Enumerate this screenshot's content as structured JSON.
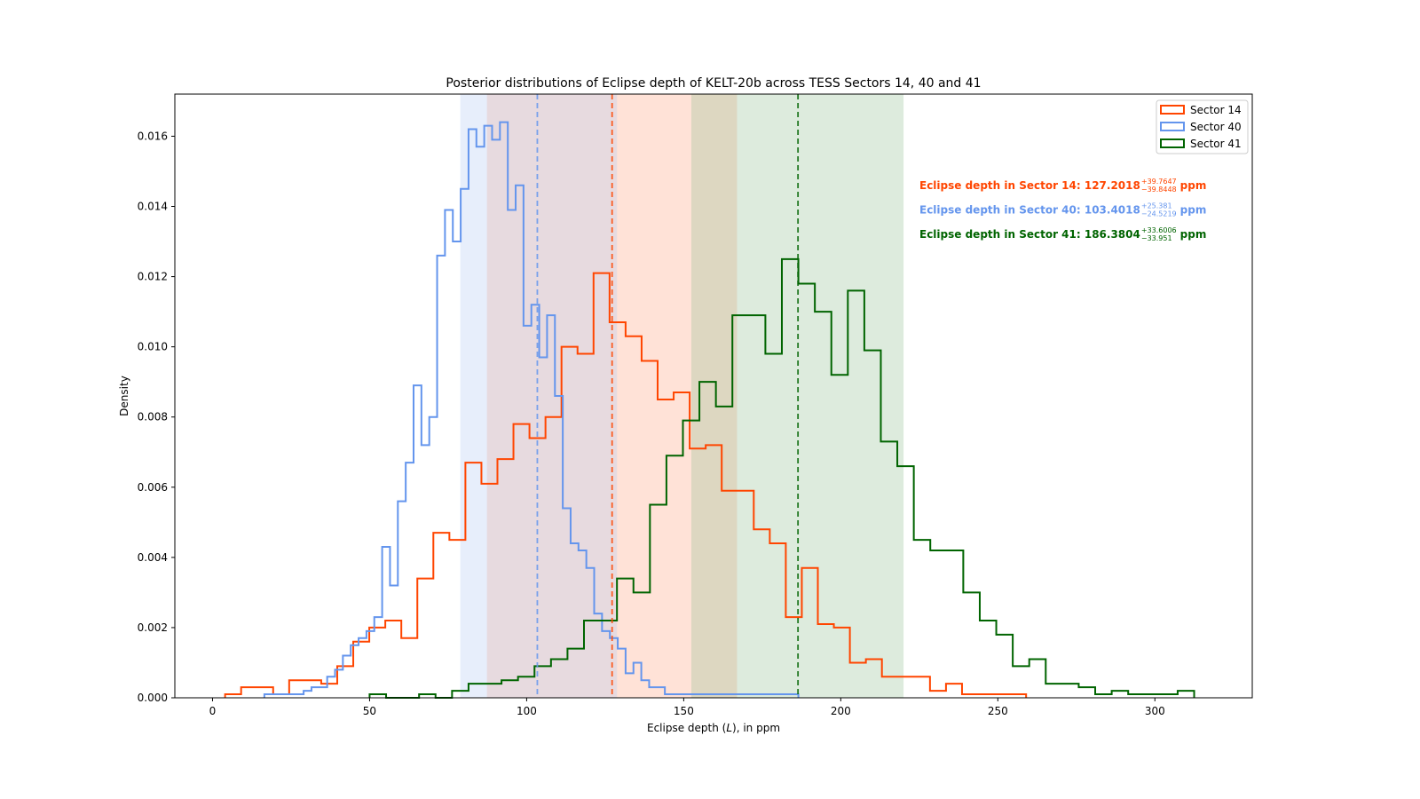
{
  "chart_data": {
    "type": "histogram",
    "title": "Posterior distributions of Eclipse depth of KELT-20b across TESS Sectors 14, 40 and 41",
    "xlabel_prefix": "Eclipse depth (",
    "xlabel_var": "L",
    "xlabel_suffix": "), in ppm",
    "ylabel": "Density",
    "xlim": [
      -12,
      331
    ],
    "ylim": [
      0,
      0.0172
    ],
    "xticks": [
      0,
      50,
      100,
      150,
      200,
      250,
      300
    ],
    "yticks": [
      0,
      0.002,
      0.004,
      0.006,
      0.008,
      0.01,
      0.012,
      0.014,
      0.016
    ],
    "ytick_labels": [
      "0.000",
      "0.002",
      "0.004",
      "0.006",
      "0.008",
      "0.010",
      "0.012",
      "0.014",
      "0.016"
    ],
    "legend_position": "top-right",
    "series": [
      {
        "name": "Sector 14",
        "color": "#ff4500",
        "median": 127.2018,
        "interval": [
          87.357,
          166.9665
        ],
        "band_color": "#ffa07a",
        "annotation": {
          "text": "Eclipse depth in Sector 14: 127.2018",
          "sup": "+39.7647",
          "sub": "−39.8448",
          "unit": "ppm"
        },
        "edges": [
          4.0,
          9.1,
          14.2,
          19.3,
          24.4,
          29.5,
          34.6,
          39.7,
          44.8,
          49.9,
          55.0,
          60.1,
          65.2,
          70.3,
          75.4,
          80.5,
          85.6,
          90.7,
          95.8,
          100.9,
          106.0,
          111.1,
          116.2,
          121.3,
          126.4,
          131.5,
          136.6,
          141.7,
          146.8,
          151.9,
          157.0,
          162.1,
          167.2,
          172.3,
          177.4,
          182.5,
          187.6,
          192.7,
          197.8,
          202.9,
          208.0,
          213.1,
          218.2,
          223.3,
          228.4,
          233.5,
          238.6,
          243.7,
          248.8,
          253.9,
          259.0
        ],
        "values": [
          0.0001,
          0.0003,
          0.0003,
          0.0001,
          0.0005,
          0.0005,
          0.0004,
          0.0009,
          0.0016,
          0.002,
          0.0022,
          0.0017,
          0.0034,
          0.0047,
          0.0045,
          0.0067,
          0.0061,
          0.0068,
          0.0078,
          0.0074,
          0.008,
          0.01,
          0.0098,
          0.0121,
          0.0107,
          0.0103,
          0.0096,
          0.0085,
          0.0087,
          0.0071,
          0.0072,
          0.0059,
          0.0059,
          0.0048,
          0.0044,
          0.0023,
          0.0037,
          0.0021,
          0.002,
          0.001,
          0.0011,
          0.0006,
          0.0006,
          0.0006,
          0.0002,
          0.0004,
          0.0001,
          0.0001,
          0.0001,
          0.0001
        ]
      },
      {
        "name": "Sector 40",
        "color": "#6495ed",
        "median": 103.4018,
        "interval": [
          78.8799,
          128.7829
        ],
        "band_color": "#aec6f2",
        "annotation": {
          "text": "Eclipse depth in Sector 40: 103.4018",
          "sup": "+25.381",
          "sub": "−24.5219",
          "unit": "ppm"
        },
        "edges": [
          16.5,
          19.0,
          21.5,
          24.0,
          26.5,
          29.0,
          31.5,
          34.0,
          36.5,
          39.0,
          41.5,
          44.0,
          46.5,
          49.0,
          51.5,
          54.0,
          56.5,
          59.0,
          61.5,
          64.0,
          66.5,
          69.0,
          71.5,
          74.0,
          76.5,
          79.0,
          81.5,
          84.0,
          86.5,
          89.0,
          91.5,
          94.0,
          96.5,
          99.0,
          101.5,
          104.0,
          106.5,
          109.0,
          111.5,
          114.0,
          116.5,
          119.0,
          121.5,
          124.0,
          126.5,
          129.0,
          131.5,
          134.0,
          136.5,
          139.0,
          141.5,
          144.0,
          146.5,
          149.0,
          151.5,
          154.0,
          156.5,
          159.0,
          161.5,
          164.0,
          166.5,
          169.0,
          171.5,
          174.0,
          176.5,
          179.0,
          181.5,
          184.0,
          186.5
        ],
        "values": [
          0.0001,
          0.0001,
          0.0001,
          0.0001,
          0.0001,
          0.0002,
          0.0003,
          0.0003,
          0.0006,
          0.0008,
          0.0012,
          0.0015,
          0.0017,
          0.0019,
          0.0023,
          0.0043,
          0.0032,
          0.0056,
          0.0067,
          0.0089,
          0.0072,
          0.008,
          0.0126,
          0.0139,
          0.013,
          0.0145,
          0.0162,
          0.0157,
          0.0163,
          0.0159,
          0.0164,
          0.0139,
          0.0146,
          0.0106,
          0.0112,
          0.0097,
          0.0109,
          0.0086,
          0.0054,
          0.0044,
          0.0042,
          0.0037,
          0.0024,
          0.0019,
          0.0017,
          0.0014,
          0.0007,
          0.001,
          0.0005,
          0.0003,
          0.0003,
          0.0001,
          0.0001,
          0.0001,
          0.0001,
          0.0001,
          0.0001,
          0.0001,
          0.0001,
          0.0001,
          0.0001,
          0.0001,
          0.0001,
          0.0001,
          0.0001,
          0.0001,
          0.0001,
          0.0001
        ]
      },
      {
        "name": "Sector 41",
        "color": "#006400",
        "median": 186.3804,
        "interval": [
          152.4294,
          219.981
        ],
        "band_color": "#8fbc8f",
        "annotation": {
          "text": "Eclipse depth in Sector 41: 186.3804",
          "sup": "+33.6006",
          "sub": "−33.951",
          "unit": "ppm"
        },
        "edges": [
          50.0,
          55.25,
          60.5,
          65.75,
          71.0,
          76.25,
          81.5,
          86.75,
          92.0,
          97.25,
          102.5,
          107.75,
          113.0,
          118.25,
          123.5,
          128.75,
          134.0,
          139.25,
          144.5,
          149.75,
          155.0,
          160.25,
          165.5,
          170.75,
          176.0,
          181.25,
          186.5,
          191.75,
          197.0,
          202.25,
          207.5,
          212.75,
          218.0,
          223.25,
          228.5,
          233.75,
          239.0,
          244.25,
          249.5,
          254.75,
          260.0,
          265.25,
          270.5,
          275.75,
          281.0,
          286.25,
          291.5,
          296.75,
          302.0,
          307.25,
          312.5
        ],
        "values": [
          0.0001,
          0.0,
          0.0,
          0.0001,
          0.0,
          0.0002,
          0.0004,
          0.0004,
          0.0005,
          0.0006,
          0.0009,
          0.0011,
          0.0014,
          0.0022,
          0.0022,
          0.0034,
          0.003,
          0.0055,
          0.0069,
          0.0079,
          0.009,
          0.0083,
          0.0109,
          0.0109,
          0.0098,
          0.0125,
          0.0118,
          0.011,
          0.0092,
          0.0116,
          0.0099,
          0.0073,
          0.0066,
          0.0045,
          0.0042,
          0.0042,
          0.003,
          0.0022,
          0.0018,
          0.0009,
          0.0011,
          0.0004,
          0.0004,
          0.0003,
          0.0001,
          0.0002,
          0.0001,
          0.0001,
          0.0001,
          0.0002
        ]
      }
    ]
  }
}
